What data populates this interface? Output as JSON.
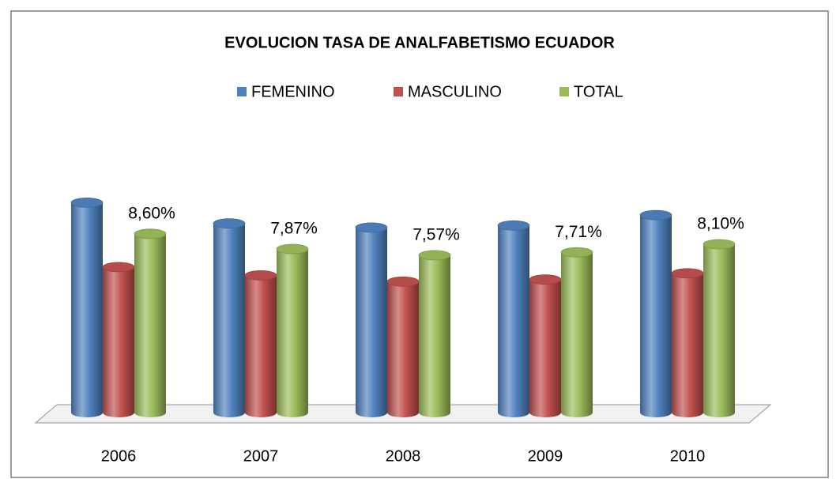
{
  "chart_data": {
    "type": "bar3d",
    "title": "EVOLUCION TASA DE ANALFABETISMO ECUADOR",
    "categories": [
      "2006",
      "2007",
      "2008",
      "2009",
      "2010"
    ],
    "series": [
      {
        "name": "FEMENINO",
        "color": "#4f81bd",
        "values": [
          10.1,
          9.1,
          8.9,
          9.0,
          9.5
        ]
      },
      {
        "name": "MASCULINO",
        "color": "#c0504d",
        "values": [
          7.0,
          6.6,
          6.3,
          6.4,
          6.7
        ]
      },
      {
        "name": "TOTAL",
        "color": "#9bbb59",
        "values": [
          8.6,
          7.87,
          7.57,
          7.71,
          8.1
        ],
        "value_labels": [
          "8,60%",
          "7,87%",
          "7,57%",
          "7,71%",
          "8,10%"
        ]
      }
    ],
    "ylim": [
      0,
      11
    ],
    "legend": "top"
  }
}
